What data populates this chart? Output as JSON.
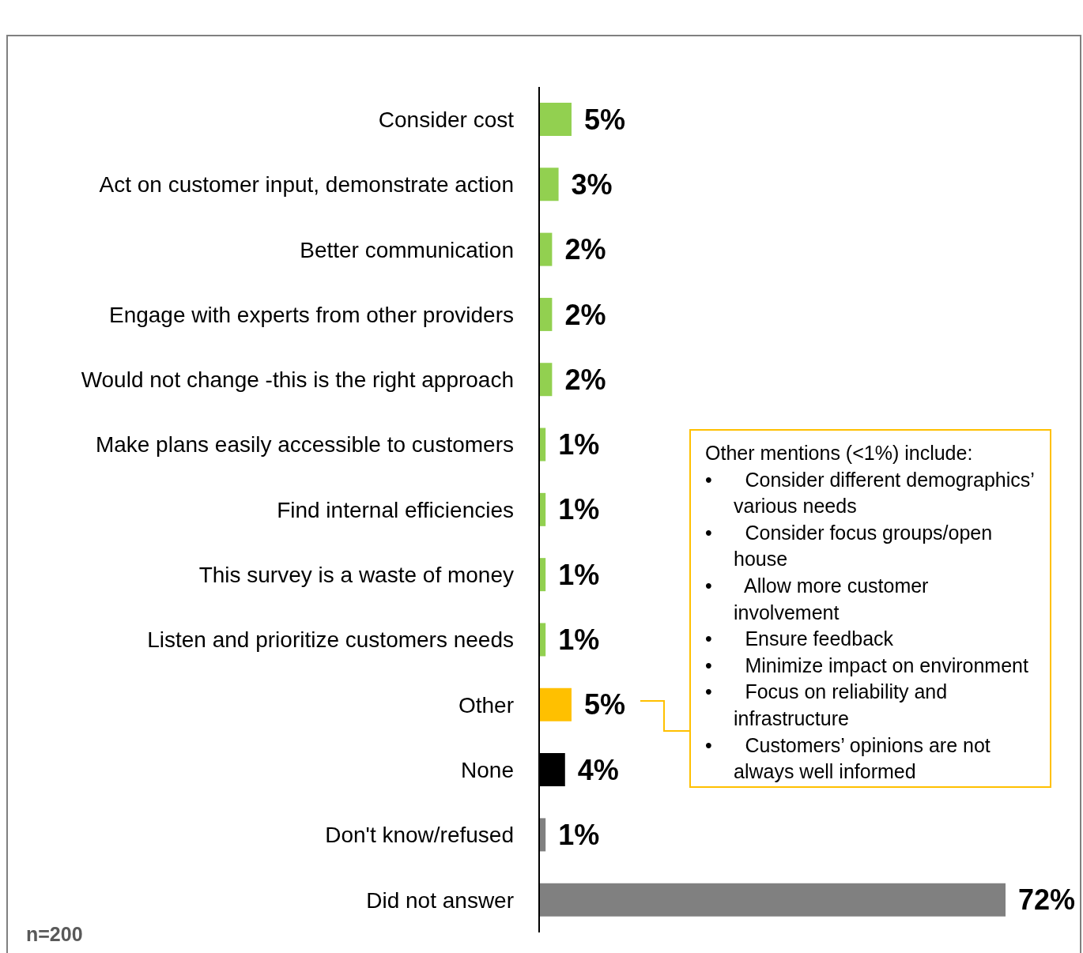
{
  "chart_data": {
    "type": "bar",
    "orientation": "horizontal",
    "categories": [
      "Consider cost",
      "Act on customer input, demonstrate action",
      "Better communication",
      "Engage with experts from other providers",
      "Would not change -this is the right approach",
      "Make plans easily accessible to customers",
      "Find internal efficiencies",
      "This survey is a waste of money",
      "Listen and prioritize customers needs",
      "Other",
      "None",
      "Don't know/refused",
      "Did not answer"
    ],
    "values": [
      5,
      3,
      2,
      2,
      2,
      1,
      1,
      1,
      1,
      5,
      4,
      1,
      72
    ],
    "colors": [
      "#92d050",
      "#92d050",
      "#92d050",
      "#92d050",
      "#92d050",
      "#92d050",
      "#92d050",
      "#92d050",
      "#92d050",
      "#ffc000",
      "#000000",
      "#808080",
      "#808080"
    ],
    "data_labels": true,
    "value_labels": [
      "5%",
      "3%",
      "2%",
      "2%",
      "2%",
      "1%",
      "1%",
      "1%",
      "1%",
      "5%",
      "4%",
      "1%",
      "72%"
    ],
    "annotations": [
      "Other mentions (<1%) include:\n•\tConsider different demographics’ various needs\n•\tConsider focus groups/open house\n•\tAllow more customer involvement\n•\tEnsure feedback\n•\tMinimize impact on environment\n•\tFocus on reliability and infrastructure\n•\tCustomers’ opinions are not always well informed",
      "n=200"
    ]
  }
}
